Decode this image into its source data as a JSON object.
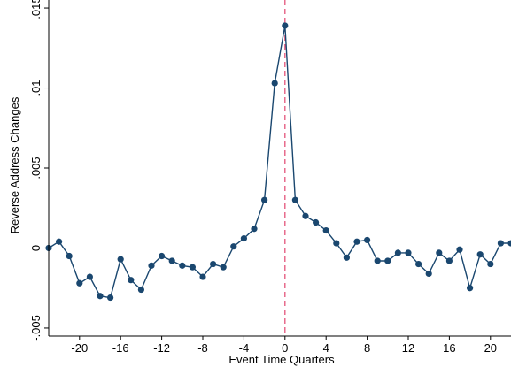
{
  "chart_data": {
    "type": "line",
    "title": "",
    "xlabel": "Event Time Quarters",
    "ylabel": "Reverse Address Changes",
    "xlim": [
      -23,
      22
    ],
    "ylim": [
      -0.0055,
      0.0155
    ],
    "x_ticks": [
      -20,
      -16,
      -12,
      -8,
      -4,
      0,
      4,
      8,
      12,
      16,
      20
    ],
    "x_tick_labels": [
      "-20",
      "-16",
      "-12",
      "-8",
      "-4",
      "0",
      "4",
      "8",
      "12",
      "16",
      "20"
    ],
    "y_ticks": [
      -0.005,
      0,
      0.005,
      0.01,
      0.015
    ],
    "y_tick_labels": [
      "-.005",
      "0",
      ".005",
      ".01",
      ".015"
    ],
    "grid": false,
    "reference_line": {
      "x": 0,
      "style": "dashed",
      "color": "#e4547a"
    },
    "series": [
      {
        "color": "#1a476f",
        "marker": "circle",
        "x": [
          -23,
          -22,
          -21,
          -20,
          -19,
          -18,
          -17,
          -16,
          -15,
          -14,
          -13,
          -12,
          -11,
          -10,
          -9,
          -8,
          -7,
          -6,
          -5,
          -4,
          -3,
          -2,
          -1,
          0,
          1,
          2,
          3,
          4,
          5,
          6,
          7,
          8,
          9,
          10,
          11,
          12,
          13,
          14,
          15,
          16,
          17,
          18,
          19,
          20,
          21,
          22
        ],
        "values": [
          0.0,
          0.0004,
          -0.0005,
          -0.0022,
          -0.0018,
          -0.003,
          -0.0031,
          -0.0007,
          -0.002,
          -0.0026,
          -0.0011,
          -0.0005,
          -0.0008,
          -0.0011,
          -0.0012,
          -0.0018,
          -0.001,
          -0.0012,
          0.0001,
          0.0006,
          0.0012,
          0.003,
          0.0103,
          0.0139,
          0.003,
          0.002,
          0.0016,
          0.0011,
          0.0003,
          -0.0006,
          0.0004,
          0.0005,
          -0.0008,
          -0.0008,
          -0.0003,
          -0.0003,
          -0.001,
          -0.0016,
          -0.0003,
          -0.0008,
          -0.0001,
          -0.0025,
          -0.0004,
          -0.001,
          0.0003,
          0.0003
        ]
      }
    ]
  }
}
